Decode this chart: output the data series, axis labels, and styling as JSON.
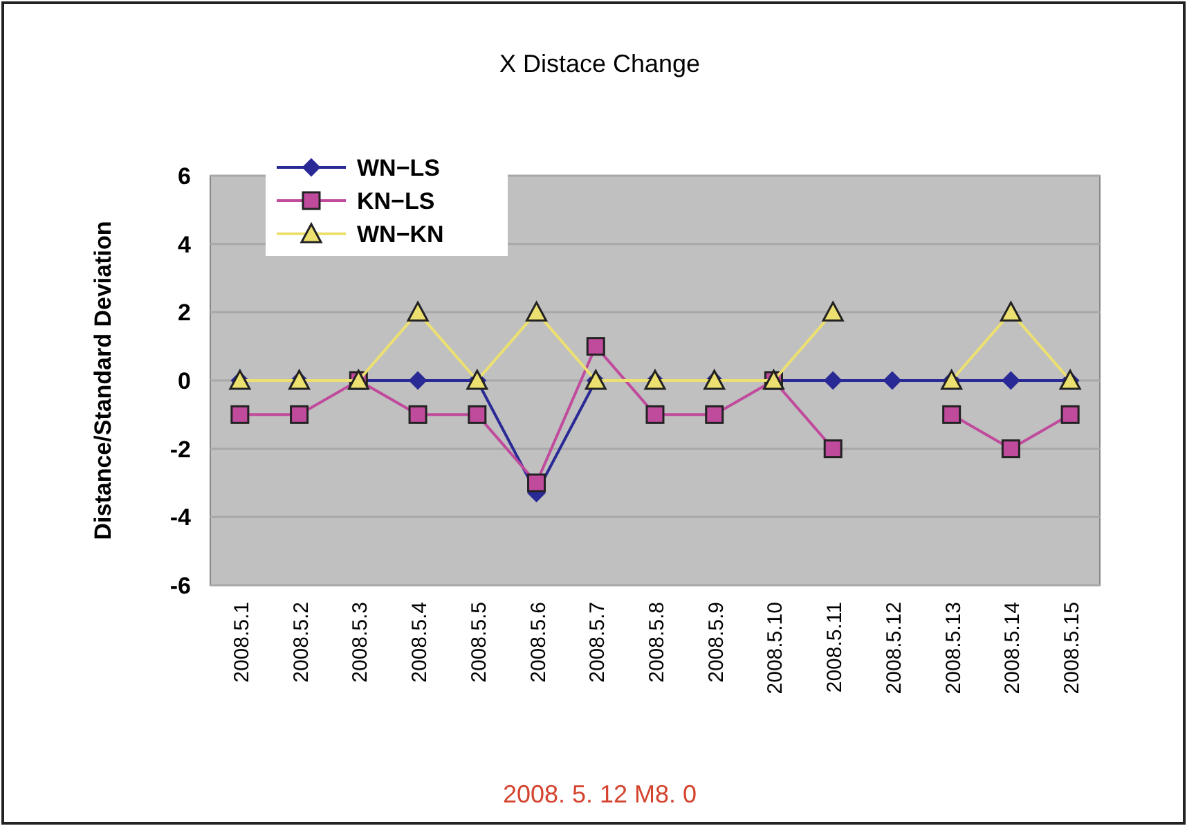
{
  "chart_data": {
    "type": "line",
    "title": "X Distace Change",
    "ylabel": "Distance/Standard Deviation",
    "categories": [
      "2008.5.1",
      "2008.5.2",
      "2008.5.3",
      "2008.5.4",
      "2008.5.5",
      "2008.5.6",
      "2008.5.7",
      "2008.5.8",
      "2008.5.9",
      "2008.5.10",
      "2008.5.11",
      "2008.5.12",
      "2008.5.13",
      "2008.5.14",
      "2008.5.15"
    ],
    "series": [
      {
        "name": "WN−LS",
        "color": "#2a2a96",
        "marker": "diamond",
        "values": [
          0,
          0,
          0,
          0,
          0,
          -3.3,
          0,
          0,
          0,
          0,
          0,
          0,
          0,
          0,
          0
        ]
      },
      {
        "name": "KN−LS",
        "color": "#c04a9c",
        "marker": "square",
        "values": [
          -1,
          -1,
          0,
          -1,
          -1,
          -3,
          1,
          -1,
          -1,
          0,
          -2,
          null,
          -1,
          -2,
          -1
        ]
      },
      {
        "name": "WN−KN",
        "color": "#ece070",
        "marker": "triangle",
        "values": [
          0,
          0,
          0,
          2,
          0,
          2,
          0,
          0,
          0,
          0,
          2,
          null,
          0,
          2,
          0
        ]
      }
    ],
    "ylim": [
      -6,
      6
    ],
    "yticks": [
      -6,
      -4,
      -2,
      0,
      2,
      4,
      6
    ],
    "grid": "y",
    "legend": "top left",
    "annotations": [
      "2008. 5. 12  M8. 0"
    ]
  }
}
